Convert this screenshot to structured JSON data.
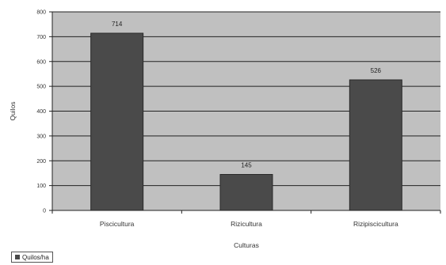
{
  "chart_data": {
    "type": "bar",
    "categories": [
      "Piscicultura",
      "Rizicultura",
      "Rizipiscicultura"
    ],
    "series": [
      {
        "name": "Quilos/ha",
        "values": [
          714,
          145,
          526
        ]
      }
    ],
    "data_labels": [
      "714",
      "145",
      "526"
    ],
    "xlabel": "Culturas",
    "ylabel": "Quilos",
    "ylim": [
      0,
      800
    ],
    "yticks": [
      0,
      100,
      200,
      300,
      400,
      500,
      600,
      700,
      800
    ],
    "ytick_labels": [
      "0",
      "100",
      "200",
      "300",
      "400",
      "500",
      "600",
      "700",
      "800"
    ],
    "grid": true,
    "legend": "bottom-left",
    "colors": {
      "plot_bg": "#c0c0c0",
      "bar": "#4a4a4a",
      "grid": "#222222"
    }
  }
}
